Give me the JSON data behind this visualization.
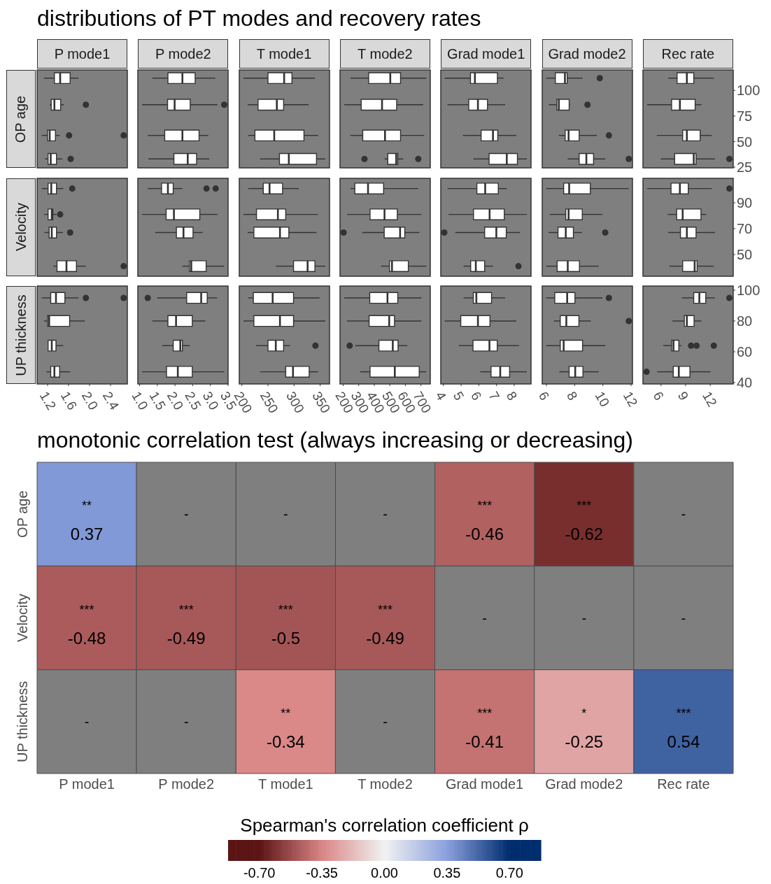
{
  "chart_data": [
    {
      "type": "other",
      "title": "distributions of PT modes and recovery rates"
    },
    {
      "type": "box",
      "orientation": "horizontal",
      "title": "P mode1",
      "ylabel": "OP age",
      "x": [
        112,
        86,
        56,
        33
      ],
      "ylim": [
        24.3,
        120
      ],
      "xlim": [
        1.0,
        2.72
      ],
      "tick_labels": false,
      "boxes": [
        {
          "low": 1.13,
          "q1": 1.33,
          "median": 1.44,
          "q3": 1.63,
          "high": 1.79
        },
        {
          "low": 1.24,
          "q1": 1.27,
          "median": 1.33,
          "q3": 1.45,
          "high": 1.51,
          "outliers": [
            1.93
          ]
        },
        {
          "low": 1.09,
          "q1": 1.2,
          "median": 1.24,
          "q3": 1.35,
          "high": 1.43,
          "outliers": [
            1.61,
            2.65
          ]
        },
        {
          "low": 1.15,
          "q1": 1.21,
          "median": 1.26,
          "q3": 1.37,
          "high": 1.48,
          "outliers": [
            1.64
          ]
        }
      ]
    },
    {
      "type": "box",
      "orientation": "horizontal",
      "title": "P mode2",
      "x": [
        112,
        86,
        56,
        33
      ],
      "ylim": [
        24.3,
        120
      ],
      "xlim": [
        0.95,
        3.5
      ],
      "tick_labels": false,
      "boxes": [
        {
          "low": 1.36,
          "q1": 1.8,
          "median": 2.21,
          "q3": 2.57,
          "high": 3.14
        },
        {
          "low": 1.07,
          "q1": 1.79,
          "median": 1.99,
          "q3": 2.43,
          "high": 3.2,
          "outliers": [
            3.39
          ]
        },
        {
          "low": 1.23,
          "q1": 1.71,
          "median": 2.21,
          "q3": 2.68,
          "high": 2.94
        },
        {
          "low": 1.25,
          "q1": 1.97,
          "median": 2.36,
          "q3": 2.61,
          "high": 2.97
        }
      ]
    },
    {
      "type": "box",
      "orientation": "horizontal",
      "title": "T mode1",
      "x": [
        112,
        86,
        56,
        33
      ],
      "ylim": [
        24.3,
        120
      ],
      "xlim": [
        195,
        368
      ],
      "tick_labels": false,
      "boxes": [
        {
          "low": 203,
          "q1": 250,
          "median": 281,
          "q3": 296,
          "high": 340
        },
        {
          "low": 211,
          "q1": 231,
          "median": 267,
          "q3": 280,
          "high": 328
        },
        {
          "low": 212,
          "q1": 225,
          "median": 262,
          "q3": 319,
          "high": 346
        },
        {
          "low": 235,
          "q1": 272,
          "median": 290,
          "q3": 343,
          "high": 360
        }
      ]
    },
    {
      "type": "box",
      "orientation": "horizontal",
      "title": "T mode2",
      "x": [
        112,
        86,
        56,
        33
      ],
      "ylim": [
        24.3,
        120
      ],
      "xlim": [
        180,
        760
      ],
      "tick_labels": false,
      "boxes": [
        {
          "low": 248,
          "q1": 364,
          "median": 503,
          "q3": 569,
          "high": 735
        },
        {
          "low": 207,
          "q1": 316,
          "median": 450,
          "q3": 544,
          "high": 714
        },
        {
          "low": 246,
          "q1": 326,
          "median": 469,
          "q3": 569,
          "high": 721
        },
        {
          "low": 466,
          "q1": 487,
          "median": 541,
          "q3": 551,
          "high": 587,
          "outliers": [
            337,
            683
          ]
        }
      ]
    },
    {
      "type": "box",
      "orientation": "horizontal",
      "title": "Grad mode1",
      "x": [
        112,
        86,
        56,
        33
      ],
      "ylim": [
        24.3,
        120
      ],
      "xlim": [
        3.85,
        8.95
      ],
      "tick_labels": false,
      "boxes": [
        {
          "low": 4.07,
          "q1": 5.53,
          "median": 5.78,
          "q3": 7.05,
          "high": 7.4
        },
        {
          "low": 4.23,
          "q1": 5.43,
          "median": 5.95,
          "q3": 6.49,
          "high": 7.49
        },
        {
          "low": 5.1,
          "q1": 6.13,
          "median": 6.8,
          "q3": 7.07,
          "high": 8.12
        },
        {
          "low": 5.7,
          "q1": 6.58,
          "median": 7.58,
          "q3": 8.18,
          "high": 8.71
        }
      ]
    },
    {
      "type": "box",
      "orientation": "horizontal",
      "title": "Grad mode2",
      "x": [
        112,
        86,
        56,
        33
      ],
      "ylim": [
        24.3,
        120
      ],
      "xlim": [
        5.7,
        12.1
      ],
      "tick_labels": false,
      "boxes": [
        {
          "low": 5.98,
          "q1": 6.63,
          "median": 7.31,
          "q3": 7.47,
          "high": 8.56,
          "outliers": [
            9.78
          ]
        },
        {
          "low": 6.17,
          "q1": 6.74,
          "median": 6.88,
          "q3": 7.61,
          "high": 7.67,
          "outliers": [
            8.91
          ]
        },
        {
          "low": 6.88,
          "q1": 7.33,
          "median": 7.57,
          "q3": 8.32,
          "high": 9.58,
          "outliers": [
            10.43
          ]
        },
        {
          "low": 7.51,
          "q1": 8.32,
          "median": 8.83,
          "q3": 9.34,
          "high": 10.17,
          "outliers": [
            11.84
          ]
        }
      ]
    },
    {
      "type": "box",
      "orientation": "horizontal",
      "title": "Rec rate",
      "x": [
        112,
        86,
        56,
        33
      ],
      "ylim": [
        24.3,
        120
      ],
      "yticks": [
        25,
        50,
        75,
        100
      ],
      "xlim": [
        3.8,
        14.8
      ],
      "tick_labels": "y",
      "boxes": [
        {
          "low": 6.88,
          "q1": 7.96,
          "median": 9.15,
          "q3": 9.99,
          "high": 12.43
        },
        {
          "low": 4.31,
          "q1": 7.29,
          "median": 8.3,
          "q3": 10.16,
          "high": 10.94
        },
        {
          "low": 5.49,
          "q1": 8.64,
          "median": 9.15,
          "q3": 10.77,
          "high": 12.19
        },
        {
          "low": 5.97,
          "q1": 7.66,
          "median": 9.99,
          "q3": 10.27,
          "high": 12.57,
          "outliers": [
            14.33
          ]
        }
      ]
    },
    {
      "type": "box",
      "orientation": "horizontal",
      "ylabel": "Velocity",
      "x": [
        101,
        81,
        67,
        41
      ],
      "ylim": [
        33.2,
        108.9
      ],
      "xlim": [
        1.0,
        2.72
      ],
      "tick_labels": false,
      "boxes": [
        {
          "low": 1.09,
          "q1": 1.21,
          "median": 1.27,
          "q3": 1.37,
          "high": 1.5,
          "outliers": [
            1.67
          ]
        },
        {
          "low": 1.14,
          "q1": 1.21,
          "median": 1.28,
          "q3": 1.3,
          "high": 1.37,
          "outliers": [
            1.44
          ]
        },
        {
          "low": 1.14,
          "q1": 1.23,
          "median": 1.28,
          "q3": 1.37,
          "high": 1.49,
          "outliers": [
            1.63
          ]
        },
        {
          "low": 1.31,
          "q1": 1.38,
          "median": 1.56,
          "q3": 1.75,
          "high": 1.93,
          "outliers": [
            2.65
          ]
        }
      ]
    },
    {
      "type": "box",
      "orientation": "horizontal",
      "x": [
        101,
        81,
        67,
        41
      ],
      "ylim": [
        33.2,
        108.9
      ],
      "xlim": [
        0.95,
        3.5
      ],
      "tick_labels": false,
      "boxes": [
        {
          "low": 1.23,
          "q1": 1.62,
          "median": 1.8,
          "q3": 1.95,
          "high": 2.21,
          "outliers": [
            2.89,
            3.15
          ]
        },
        {
          "low": 1.07,
          "q1": 1.75,
          "median": 1.97,
          "q3": 2.7,
          "high": 3.2
        },
        {
          "low": 1.44,
          "q1": 2.04,
          "median": 2.24,
          "q3": 2.51,
          "high": 2.78
        },
        {
          "low": 2.21,
          "q1": 2.41,
          "median": 2.46,
          "q3": 2.88,
          "high": 3.39
        }
      ]
    },
    {
      "type": "box",
      "orientation": "horizontal",
      "x": [
        101,
        81,
        67,
        41
      ],
      "ylim": [
        33.2,
        108.9
      ],
      "xlim": [
        195,
        368
      ],
      "tick_labels": false,
      "boxes": [
        {
          "low": 212,
          "q1": 241,
          "median": 253,
          "q3": 278,
          "high": 309
        },
        {
          "low": 203,
          "q1": 228,
          "median": 269,
          "q3": 284,
          "high": 346
        },
        {
          "low": 211,
          "q1": 223,
          "median": 273,
          "q3": 290,
          "high": 343
        },
        {
          "low": 265,
          "q1": 299,
          "median": 326,
          "q3": 340,
          "high": 360
        }
      ]
    },
    {
      "type": "box",
      "orientation": "horizontal",
      "x": [
        101,
        81,
        67,
        41
      ],
      "ylim": [
        33.2,
        108.9
      ],
      "xlim": [
        180,
        760
      ],
      "tick_labels": false,
      "boxes": [
        {
          "low": 248,
          "q1": 275,
          "median": 360,
          "q3": 460,
          "high": 682
        },
        {
          "low": 225,
          "q1": 373,
          "median": 466,
          "q3": 548,
          "high": 703
        },
        {
          "low": 323,
          "q1": 464,
          "median": 566,
          "q3": 596,
          "high": 689,
          "outliers": [
            203
          ]
        },
        {
          "low": 444,
          "q1": 498,
          "median": 514,
          "q3": 619,
          "high": 735
        }
      ]
    },
    {
      "type": "box",
      "orientation": "horizontal",
      "x": [
        101,
        81,
        67,
        41
      ],
      "ylim": [
        33.2,
        108.9
      ],
      "xlim": [
        3.85,
        8.95
      ],
      "tick_labels": false,
      "boxes": [
        {
          "low": 4.23,
          "q1": 5.89,
          "median": 6.36,
          "q3": 7.1,
          "high": 7.58
        },
        {
          "low": 4.29,
          "q1": 5.7,
          "median": 6.61,
          "q3": 7.44,
          "high": 8.71
        },
        {
          "low": 4.67,
          "q1": 6.33,
          "median": 6.99,
          "q3": 7.55,
          "high": 8.32,
          "outliers": [
            4.05
          ]
        },
        {
          "low": 5.14,
          "q1": 5.54,
          "median": 5.83,
          "q3": 6.33,
          "high": 6.8,
          "outliers": [
            8.24
          ]
        }
      ]
    },
    {
      "type": "box",
      "orientation": "horizontal",
      "x": [
        101,
        81,
        67,
        41
      ],
      "ylim": [
        33.2,
        108.9
      ],
      "xlim": [
        5.7,
        12.1
      ],
      "tick_labels": false,
      "boxes": [
        {
          "low": 5.98,
          "q1": 7.22,
          "median": 7.61,
          "q3": 9.11,
          "high": 11.84
        },
        {
          "low": 6.23,
          "q1": 7.37,
          "median": 7.57,
          "q3": 8.54,
          "high": 9.97
        },
        {
          "low": 6.15,
          "q1": 6.82,
          "median": 7.37,
          "q3": 7.91,
          "high": 8.52,
          "outliers": [
            10.17
          ]
        },
        {
          "low": 5.98,
          "q1": 6.76,
          "median": 7.51,
          "q3": 8.34,
          "high": 9.7
        }
      ]
    },
    {
      "type": "box",
      "orientation": "horizontal",
      "x": [
        101,
        81,
        67,
        41
      ],
      "ylim": [
        33.2,
        108.9
      ],
      "yticks": [
        50,
        70,
        90
      ],
      "xlim": [
        3.8,
        14.8
      ],
      "tick_labels": "y",
      "boxes": [
        {
          "low": 4.31,
          "q1": 7.22,
          "median": 8.3,
          "q3": 9.32,
          "high": 12.19,
          "outliers": [
            14.33
          ]
        },
        {
          "low": 6.81,
          "q1": 7.9,
          "median": 8.64,
          "q3": 10.87,
          "high": 11.52
        },
        {
          "low": 6.88,
          "q1": 8.37,
          "median": 9.15,
          "q3": 10.27,
          "high": 12.57
        },
        {
          "low": 7.02,
          "q1": 8.64,
          "median": 10.1,
          "q3": 10.4,
          "high": 12.43
        }
      ]
    },
    {
      "type": "box",
      "orientation": "horizontal",
      "ylabel": "UP thickness",
      "x": [
        95,
        80,
        64,
        47
      ],
      "ylim": [
        39.1,
        102.7
      ],
      "xlim": [
        1.0,
        2.72
      ],
      "xticks": [
        1.2,
        1.6,
        {
          "value": 2,
          "label": "2.0"
        },
        2.4
      ],
      "tick_labels": "x",
      "boxes": [
        {
          "low": 1.09,
          "q1": 1.26,
          "median": 1.36,
          "q3": 1.53,
          "high": 1.79,
          "outliers": [
            1.93,
            2.65
          ]
        },
        {
          "low": 1.13,
          "q1": 1.2,
          "median": 1.23,
          "q3": 1.62,
          "high": 1.91
        },
        {
          "low": 1.21,
          "q1": 1.21,
          "median": 1.28,
          "q3": 1.36,
          "high": 1.5
        },
        {
          "low": 1.18,
          "q1": 1.26,
          "median": 1.33,
          "q3": 1.43,
          "high": 1.63
        }
      ]
    },
    {
      "type": "box",
      "orientation": "horizontal",
      "x": [
        95,
        80,
        64,
        47
      ],
      "ylim": [
        39.1,
        102.7
      ],
      "xlim": [
        0.95,
        3.5
      ],
      "xticks": [
        {
          "value": 1,
          "label": "1.0"
        },
        1.5,
        {
          "value": 2,
          "label": "2.0"
        },
        2.5,
        {
          "value": 3,
          "label": "3.0"
        },
        3.5
      ],
      "tick_labels": "x",
      "boxes": [
        {
          "low": 1.5,
          "q1": 2.33,
          "median": 2.74,
          "q3": 2.91,
          "high": 3.19,
          "outliers": [
            1.23
          ]
        },
        {
          "low": 1.36,
          "q1": 1.8,
          "median": 2.03,
          "q3": 2.49,
          "high": 2.86
        },
        {
          "low": 1.64,
          "q1": 1.95,
          "median": 2.15,
          "q3": 2.21,
          "high": 2.42
        },
        {
          "low": 1.07,
          "q1": 1.76,
          "median": 2.08,
          "q3": 2.49,
          "high": 3.39
        }
      ]
    },
    {
      "type": "box",
      "orientation": "horizontal",
      "x": [
        95,
        80,
        64,
        47
      ],
      "ylim": [
        39.1,
        102.7
      ],
      "xlim": [
        195,
        368
      ],
      "xticks": [
        200,
        250,
        300,
        350
      ],
      "tick_labels": "x",
      "boxes": [
        {
          "low": 212,
          "q1": 222,
          "median": 259,
          "q3": 299,
          "high": 349
        },
        {
          "low": 203,
          "q1": 223,
          "median": 273,
          "q3": 299,
          "high": 360
        },
        {
          "low": 227,
          "q1": 250,
          "median": 265,
          "q3": 280,
          "high": 292,
          "outliers": [
            341
          ]
        },
        {
          "low": 235,
          "q1": 284,
          "median": 298,
          "q3": 329,
          "high": 346
        }
      ]
    },
    {
      "type": "box",
      "orientation": "horizontal",
      "x": [
        95,
        80,
        64,
        47
      ],
      "ylim": [
        39.1,
        102.7
      ],
      "xlim": [
        180,
        760
      ],
      "xticks": [
        200,
        300,
        400,
        500,
        600,
        700
      ],
      "tick_labels": "x",
      "boxes": [
        {
          "low": 207,
          "q1": 371,
          "median": 485,
          "q3": 551,
          "high": 703
        },
        {
          "low": 225,
          "q1": 367,
          "median": 496,
          "q3": 530,
          "high": 703
        },
        {
          "low": 278,
          "q1": 430,
          "median": 519,
          "q3": 553,
          "high": 612,
          "outliers": [
            242
          ]
        },
        {
          "low": 309,
          "q1": 373,
          "median": 532,
          "q3": 689,
          "high": 733
        }
      ]
    },
    {
      "type": "box",
      "orientation": "horizontal",
      "x": [
        95,
        80,
        64,
        47
      ],
      "ylim": [
        39.1,
        102.7
      ],
      "xlim": [
        3.85,
        8.95
      ],
      "xticks": [
        4,
        5,
        6,
        7,
        8
      ],
      "tick_labels": "x",
      "boxes": [
        {
          "low": 5.14,
          "q1": 5.69,
          "median": 5.86,
          "q3": 6.72,
          "high": 7.49
        },
        {
          "low": 4.07,
          "q1": 4.98,
          "median": 5.95,
          "q3": 6.63,
          "high": 8.12
        },
        {
          "low": 4.87,
          "q1": 5.67,
          "median": 6.6,
          "q3": 7.04,
          "high": 8.27
        },
        {
          "low": 6.08,
          "q1": 6.69,
          "median": 7.21,
          "q3": 7.74,
          "high": 8.71
        }
      ]
    },
    {
      "type": "box",
      "orientation": "horizontal",
      "x": [
        95,
        80,
        64,
        47
      ],
      "ylim": [
        39.1,
        102.7
      ],
      "xlim": [
        5.7,
        12.1
      ],
      "xticks": [
        6,
        8,
        10,
        12
      ],
      "tick_labels": "x",
      "boxes": [
        {
          "low": 5.98,
          "q1": 6.59,
          "median": 7.47,
          "q3": 8.02,
          "high": 9.97,
          "outliers": [
            10.43
          ]
        },
        {
          "low": 6.53,
          "q1": 6.98,
          "median": 7.41,
          "q3": 8.3,
          "high": 9.15,
          "outliers": [
            11.84
          ]
        },
        {
          "low": 5.98,
          "q1": 6.98,
          "median": 7.22,
          "q3": 8.56,
          "high": 10.17
        },
        {
          "low": 6.92,
          "q1": 7.61,
          "median": 8.04,
          "q3": 8.59,
          "high": 9.7
        }
      ]
    },
    {
      "type": "box",
      "orientation": "horizontal",
      "x": [
        95,
        80,
        64,
        47
      ],
      "ylim": [
        39.1,
        102.7
      ],
      "yticks": [
        40,
        60,
        80,
        100
      ],
      "xlim": [
        3.8,
        14.8
      ],
      "xticks": [
        6,
        9,
        12
      ],
      "boxes": [
        {
          "low": 8.54,
          "q1": 9.99,
          "median": 10.67,
          "q3": 11.45,
          "high": 12.57,
          "outliers": [
            14.33
          ]
        },
        {
          "low": 7.39,
          "q1": 8.84,
          "median": 9.15,
          "q3": 10.03,
          "high": 10.94
        },
        {
          "low": 6.27,
          "q1": 7.29,
          "median": 7.52,
          "q3": 8.17,
          "high": 8.51,
          "outliers": [
            9.66,
            10.33,
            12.43
          ]
        },
        {
          "low": 5.53,
          "q1": 7.49,
          "median": 8.17,
          "q3": 9.52,
          "high": 12.03,
          "outliers": [
            4.24
          ]
        }
      ]
    },
    {
      "type": "heatmap",
      "title": "monotonic correlation test (always increasing or decreasing)",
      "categories": [
        "P mode1",
        "P mode2",
        "T mode1",
        "T mode2",
        "Grad mode1",
        "Grad mode2",
        "Rec rate"
      ],
      "y_categories": [
        "OP age",
        "Velocity",
        "UP thickness"
      ],
      "cells": [
        [
          0.37,
          null,
          null,
          null,
          -0.46,
          -0.62,
          null
        ],
        [
          -0.48,
          -0.49,
          -0.5,
          -0.49,
          null,
          null,
          null
        ],
        [
          null,
          null,
          -0.34,
          null,
          -0.41,
          -0.25,
          0.54
        ]
      ],
      "cell_labels": [
        [
          "**\n0.37",
          "-",
          "-",
          "-",
          "***\n-0.46",
          "***\n-0.62",
          "-"
        ],
        [
          "***\n-0.48",
          "***\n-0.49",
          "***\n-0.5",
          "***\n-0.49",
          "-",
          "-",
          "-"
        ],
        [
          "-",
          "-",
          "**\n-0.34",
          "-",
          "***\n-0.41",
          "*\n-0.25",
          "***\n0.54"
        ]
      ],
      "clabel": "Spearman's correlation coefficient ρ",
      "clim": [
        -0.875,
        0.875
      ],
      "cticks": [
        {
          "value": -0.7,
          "label": "-0.70"
        },
        {
          "value": -0.35,
          "label": "-0.35"
        },
        {
          "value": 0,
          "label": "0.00"
        },
        {
          "value": 0.35,
          "label": "0.35"
        },
        {
          "value": 0.7,
          "label": "0.70"
        }
      ],
      "colors": [
        "#5c1414",
        "#d98585",
        "#f2f2f2",
        "#8aa0dd",
        "#002d6e"
      ]
    }
  ]
}
